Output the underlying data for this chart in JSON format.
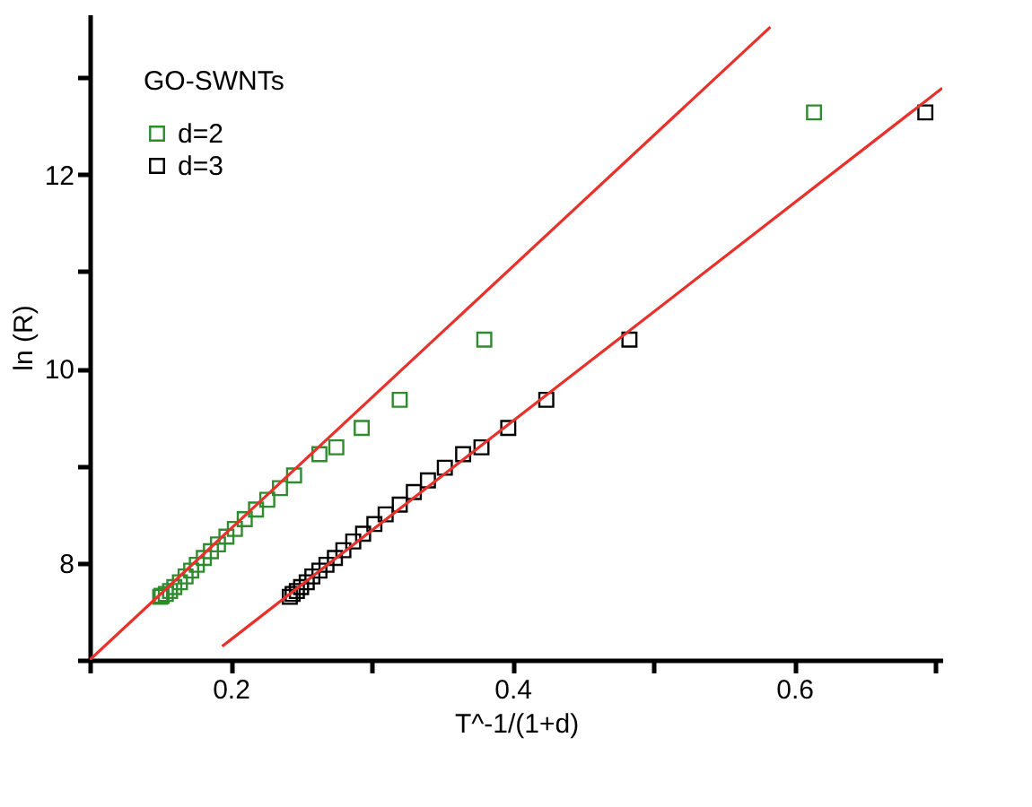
{
  "chart_data": {
    "type": "scatter",
    "xlabel": "T^-1/(1+d)",
    "ylabel": "ln (R)",
    "legend_title": "GO-SWNTs",
    "legend": "top left",
    "grid": false,
    "marker": "square",
    "xlim": [
      0.1,
      0.705
    ],
    "ylim": [
      7,
      13.65
    ],
    "xticks": [
      {
        "value": 0.1,
        "label": null
      },
      0.2,
      {
        "value": 0.3,
        "label": null
      },
      0.4,
      {
        "value": 0.5,
        "label": null
      },
      0.6,
      {
        "value": 0.7,
        "label": null
      }
    ],
    "yticks": [
      {
        "value": 7,
        "label": null
      },
      8,
      {
        "value": 9,
        "label": null
      },
      10,
      {
        "value": 11,
        "label": null
      },
      12,
      {
        "value": 13,
        "label": null
      }
    ],
    "series": [
      {
        "name": "d=2",
        "type": "scatter",
        "color": "#2e8b2e",
        "x": [
          0.15,
          0.151,
          0.154,
          0.157,
          0.16,
          0.164,
          0.168,
          0.172,
          0.176,
          0.181,
          0.186,
          0.191,
          0.197,
          0.203,
          0.21,
          0.218,
          0.226,
          0.235,
          0.245,
          0.263,
          0.275,
          0.293,
          0.32,
          0.38,
          0.614
        ],
        "values": [
          7.65,
          7.66,
          7.68,
          7.71,
          7.75,
          7.8,
          7.86,
          7.92,
          7.98,
          8.05,
          8.12,
          8.19,
          8.27,
          8.35,
          8.45,
          8.55,
          8.65,
          8.77,
          8.9,
          9.12,
          9.19,
          9.39,
          9.68,
          10.3,
          12.64
        ]
      },
      {
        "name": "d=3",
        "type": "scatter",
        "color": "#000000",
        "x": [
          0.242,
          0.244,
          0.247,
          0.25,
          0.254,
          0.258,
          0.263,
          0.268,
          0.274,
          0.28,
          0.287,
          0.294,
          0.302,
          0.31,
          0.32,
          0.33,
          0.34,
          0.352,
          0.365,
          0.378,
          0.397,
          0.424,
          0.483,
          0.693
        ],
        "values": [
          7.65,
          7.68,
          7.71,
          7.75,
          7.8,
          7.86,
          7.92,
          7.98,
          8.05,
          8.13,
          8.22,
          8.3,
          8.4,
          8.5,
          8.6,
          8.73,
          8.85,
          8.98,
          9.12,
          9.19,
          9.39,
          9.68,
          10.3,
          12.64
        ]
      },
      {
        "type": "line",
        "marker": "none",
        "color": "#e8312a",
        "x": [
          0.1,
          0.583
        ],
        "values": [
          7.0,
          13.52
        ]
      },
      {
        "type": "line",
        "marker": "none",
        "color": "#e8312a",
        "x": [
          0.194,
          0.705
        ],
        "values": [
          7.14,
          12.89
        ]
      }
    ]
  }
}
